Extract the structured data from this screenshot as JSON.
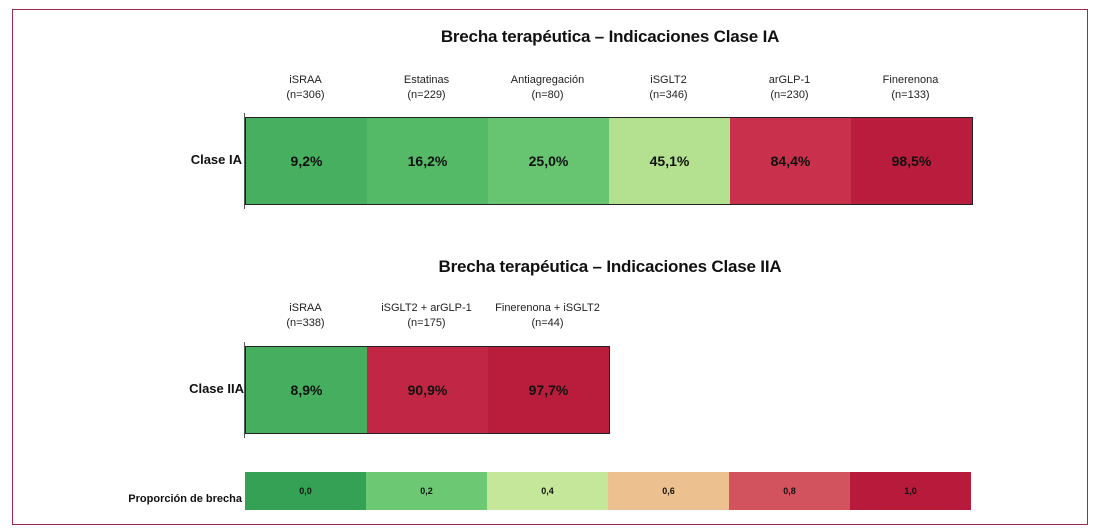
{
  "chart_data": [
    {
      "type": "heatmap",
      "title": "Brecha terapéutica – Indicaciones Clase IA",
      "rows": [
        "Clase IA"
      ],
      "columns": [
        {
          "name": "iSRAA",
          "n": "(n=306)"
        },
        {
          "name": "Estatinas",
          "n": "(n=229)"
        },
        {
          "name": "Antiagregación",
          "n": "(n=80)"
        },
        {
          "name": "iSGLT2",
          "n": "(n=346)"
        },
        {
          "name": "arGLP-1",
          "n": "(n=230)"
        },
        {
          "name": "Finerenona",
          "n": "(n=133)"
        }
      ],
      "values": [
        0.092,
        0.162,
        0.25,
        0.451,
        0.844,
        0.985
      ],
      "labels": [
        "9,2%",
        "16,2%",
        "25,0%",
        "45,1%",
        "84,4%",
        "98,5%"
      ]
    },
    {
      "type": "heatmap",
      "title": "Brecha terapéutica – Indicaciones Clase IIA",
      "rows": [
        "Clase IIA"
      ],
      "columns": [
        {
          "name": "iSRAA",
          "n": "(n=338)"
        },
        {
          "name": "iSGLT2 + arGLP-1",
          "n": "(n=175)"
        },
        {
          "name": "Finerenona + iSGLT2",
          "n": "(n=44)"
        }
      ],
      "values": [
        0.089,
        0.909,
        0.977
      ],
      "labels": [
        "8,9%",
        "90,9%",
        "97,7%"
      ]
    }
  ],
  "legend": {
    "label": "Proporción de brecha",
    "ticks": [
      "0,0",
      "0,2",
      "0,4",
      "0,6",
      "0,8",
      "1,0"
    ],
    "values": [
      0.0,
      0.2,
      0.4,
      0.6,
      0.8,
      1.0
    ],
    "colors": [
      "#34a155",
      "#6dc873",
      "#c4e79a",
      "#ecc18f",
      "#d2535e",
      "#b71a3a"
    ]
  },
  "colors": {
    "frame": "#9b2a55"
  }
}
